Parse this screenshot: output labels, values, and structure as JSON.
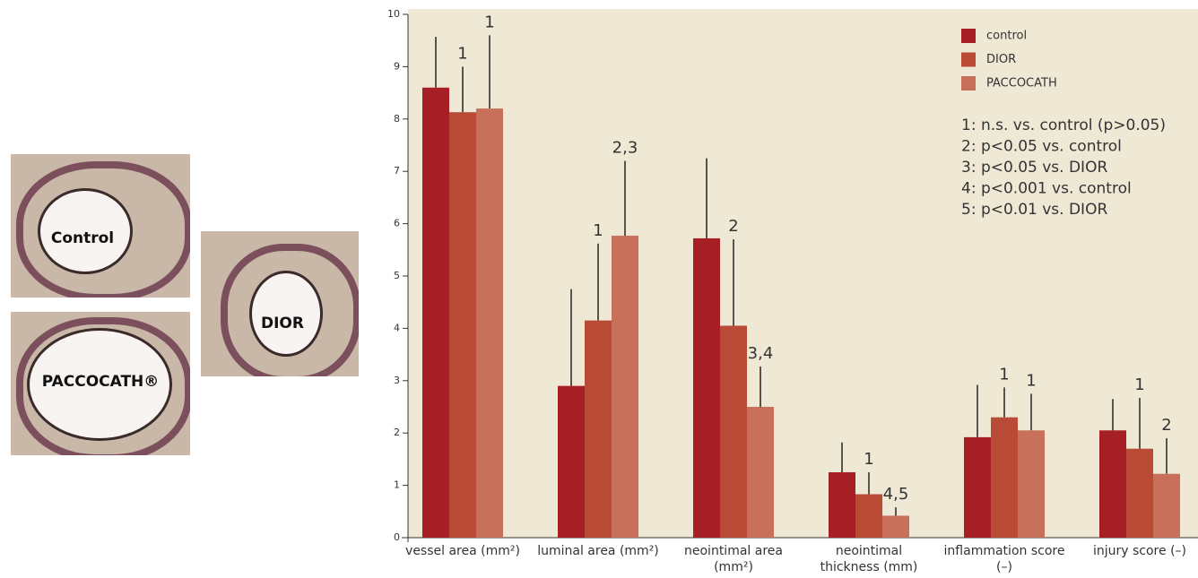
{
  "images": [
    {
      "label": "Control"
    },
    {
      "label": "PACCOCATH®"
    },
    {
      "label": "DIOR"
    }
  ],
  "chart_data": {
    "type": "bar",
    "categories": [
      "vessel area (mm²)",
      "luminal area (mm²)",
      "neointimal area (mm²)",
      "neointimal thickness (mm)",
      "inflammation score (–)",
      "injury score (–)"
    ],
    "series": [
      {
        "name": "control",
        "color": "#a51f24",
        "values": [
          8.6,
          2.9,
          5.72,
          1.25,
          1.92,
          2.05
        ],
        "errors": [
          0.97,
          1.85,
          1.53,
          0.57,
          1.0,
          0.6
        ],
        "annotations": [
          null,
          null,
          null,
          null,
          null,
          null
        ]
      },
      {
        "name": "DIOR",
        "color": "#b84a36",
        "values": [
          8.13,
          4.15,
          4.05,
          0.83,
          2.3,
          1.7
        ],
        "errors": [
          0.87,
          1.47,
          1.65,
          0.42,
          0.57,
          0.97
        ],
        "annotations": [
          "1",
          "1",
          "2",
          "1",
          "1",
          "1"
        ]
      },
      {
        "name": "PACCOCATH",
        "color": "#c8705a",
        "values": [
          8.2,
          5.77,
          2.5,
          0.42,
          2.05,
          1.22
        ],
        "errors": [
          1.4,
          1.43,
          0.77,
          0.16,
          0.7,
          0.68
        ],
        "annotations": [
          "1",
          "2,3",
          "3,4",
          "4,5",
          "1",
          "2"
        ]
      }
    ],
    "ylim": [
      0,
      10
    ],
    "yticks": [
      0,
      1,
      2,
      3,
      4,
      5,
      6,
      7,
      8,
      9,
      10
    ],
    "notes": [
      "1: n.s. vs. control (p>0.05)",
      "2: p<0.05 vs. control",
      "3: p<0.05 vs. DIOR",
      "4: p<0.001 vs. control",
      "5: p<0.01 vs. DIOR"
    ],
    "legend": "upper right"
  }
}
